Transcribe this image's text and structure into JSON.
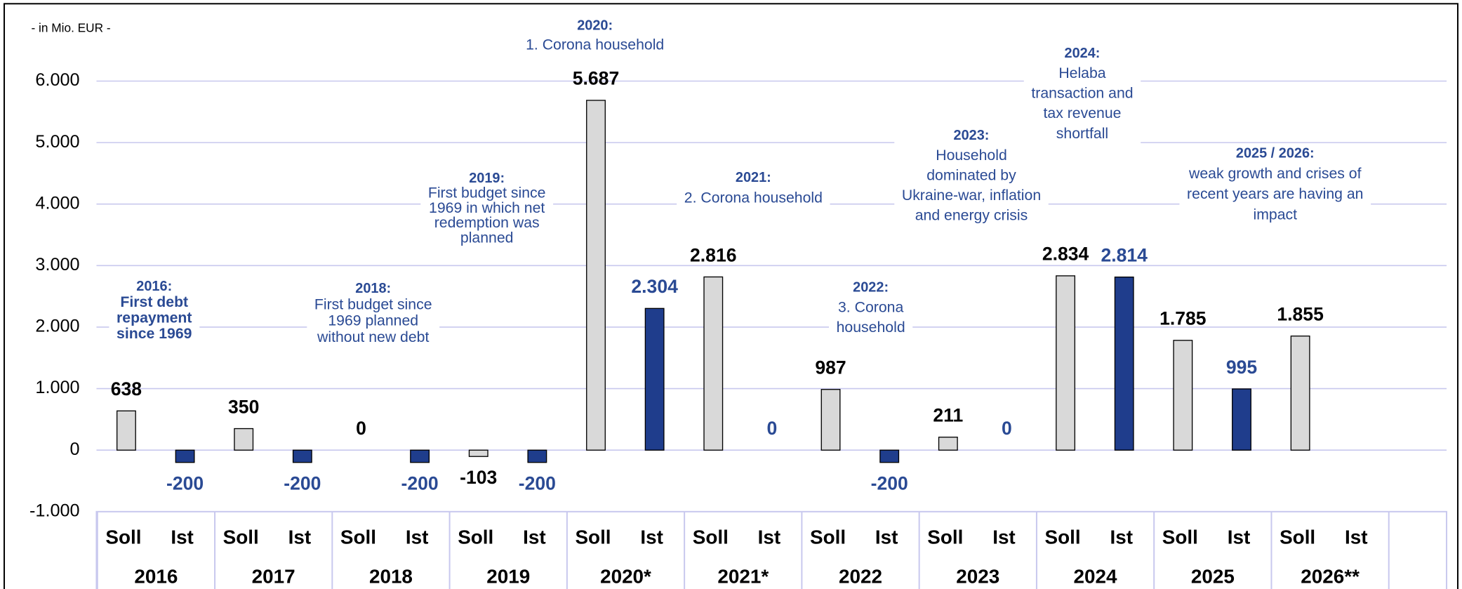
{
  "chart_data": {
    "type": "bar",
    "unit_label": "- in Mio. EUR -",
    "categories": [
      "2016",
      "2017",
      "2018",
      "2019",
      "2020*",
      "2021*",
      "2022",
      "2023",
      "2024",
      "2025",
      "2026**"
    ],
    "series": [
      {
        "name": "Soll",
        "color": "#d9d9d9",
        "label_color": "#000000",
        "values": [
          638,
          350,
          0,
          -103,
          5687,
          2816,
          987,
          211,
          2834,
          1785,
          1855
        ],
        "value_labels": [
          "638",
          "350",
          "0",
          "-103",
          "5.687",
          "2.816",
          "987",
          "211",
          "2.834",
          "1.785",
          "1.855"
        ]
      },
      {
        "name": "Ist",
        "color": "#1f3d8c",
        "label_color": "#2a4a94",
        "values": [
          -200,
          -200,
          -200,
          -200,
          2304,
          0,
          -200,
          0,
          2814,
          995,
          null
        ],
        "value_labels": [
          "-200",
          "-200",
          "-200",
          "-200",
          "2.304",
          "0",
          "-200",
          "0",
          "2.814",
          "995",
          null
        ]
      }
    ],
    "ylim": [
      -1000,
      6000
    ],
    "yticks": [
      {
        "value": -1000,
        "label": "-1.000"
      },
      0,
      {
        "value": 1000,
        "label": "1.000"
      },
      {
        "value": 2000,
        "label": "2.000"
      },
      {
        "value": 3000,
        "label": "3.000"
      },
      {
        "value": 4000,
        "label": "4.000"
      },
      {
        "value": 5000,
        "label": "5.000"
      },
      {
        "value": 6000,
        "label": "6.000"
      }
    ],
    "grid": true,
    "annotations": [
      {
        "heading": "2016:",
        "lines": [
          "First debt",
          "repayment",
          "since 1969"
        ],
        "bold": true
      },
      {
        "heading": "2018:",
        "lines": [
          "First budget since",
          "1969 planned",
          "without new debt"
        ]
      },
      {
        "heading": "2019:",
        "lines": [
          "First budget since",
          "1969 in which net",
          "redemption was",
          "planned"
        ]
      },
      {
        "heading": "2020:",
        "lines": [
          "1. Corona household"
        ]
      },
      {
        "heading": "2021:",
        "lines": [
          "2. Corona household"
        ]
      },
      {
        "heading": "2022:",
        "lines": [
          "3. Corona",
          "household"
        ]
      },
      {
        "heading": "2023:",
        "lines": [
          "Household",
          "dominated by",
          "Ukraine-war, inflation",
          "and energy crisis"
        ]
      },
      {
        "heading": "2024:",
        "lines": [
          "Helaba",
          "transaction and",
          "tax revenue",
          "shortfall"
        ]
      },
      {
        "heading": "2025 / 2026:",
        "lines": [
          "weak growth and crises of",
          "recent years are having an",
          "impact"
        ]
      }
    ]
  }
}
